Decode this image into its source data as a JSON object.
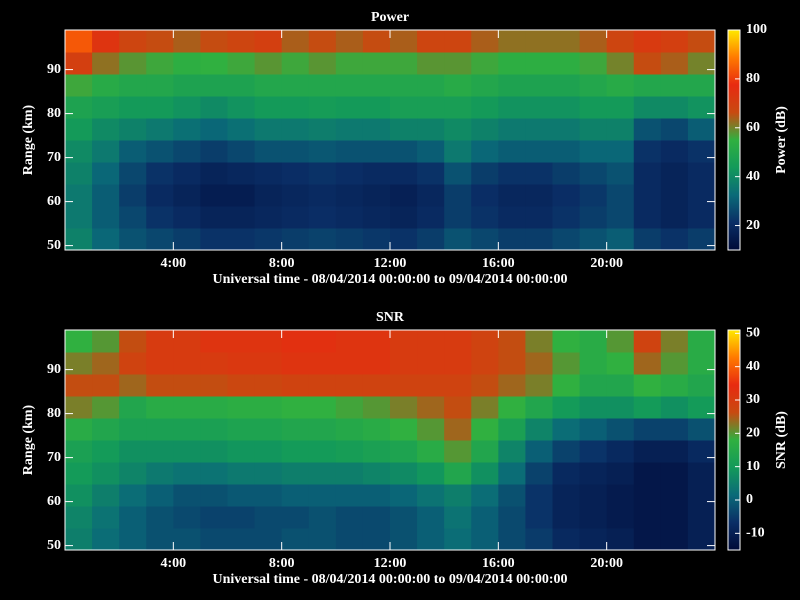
{
  "chart_data": [
    {
      "type": "heatmap",
      "title": "Power",
      "xlabel": "Universal time - 08/04/2014 00:00:00 to 09/04/2014 00:00:00",
      "ylabel": "Range (km)",
      "colorbar_label": "Power (dB)",
      "x_bins": [
        0,
        1,
        2,
        3,
        4,
        5,
        6,
        7,
        8,
        9,
        10,
        11,
        12,
        13,
        14,
        15,
        16,
        17,
        18,
        19,
        20,
        21,
        22,
        23,
        24
      ],
      "y_bins": [
        49,
        54,
        59,
        64,
        69,
        74,
        79,
        84,
        89,
        94,
        99
      ],
      "xlim": [
        0,
        24
      ],
      "ylim": [
        49,
        99
      ],
      "xticks": [
        {
          "value": 4,
          "label": "4:00"
        },
        {
          "value": 8,
          "label": "8:00"
        },
        {
          "value": 12,
          "label": "12:00"
        },
        {
          "value": 16,
          "label": "16:00"
        },
        {
          "value": 20,
          "label": "20:00"
        }
      ],
      "yticks": [
        50,
        60,
        70,
        80,
        90
      ],
      "zlim": [
        10,
        100
      ],
      "zticks": [
        20,
        40,
        60,
        80,
        100
      ],
      "colormap": [
        "#000a38",
        "#0a2e66",
        "#0a6a78",
        "#139a5a",
        "#30b040",
        "#c84a10",
        "#e82a10",
        "#ff7a00",
        "#ffe800"
      ],
      "z": [
        [
          38,
          32,
          28,
          26,
          24,
          22,
          22,
          23,
          24,
          25,
          24,
          23,
          22,
          24,
          28,
          26,
          24,
          24,
          26,
          28,
          30,
          24,
          22,
          24
        ],
        [
          36,
          30,
          26,
          22,
          20,
          18,
          18,
          19,
          20,
          21,
          20,
          19,
          18,
          20,
          24,
          22,
          20,
          20,
          22,
          24,
          26,
          20,
          18,
          20
        ],
        [
          36,
          30,
          24,
          20,
          18,
          16,
          16,
          18,
          19,
          20,
          19,
          18,
          17,
          19,
          24,
          21,
          19,
          19,
          21,
          23,
          26,
          20,
          18,
          20
        ],
        [
          38,
          32,
          26,
          22,
          20,
          18,
          19,
          20,
          21,
          22,
          21,
          20,
          20,
          22,
          28,
          24,
          22,
          22,
          24,
          26,
          28,
          20,
          18,
          20
        ],
        [
          40,
          36,
          30,
          28,
          26,
          24,
          26,
          28,
          28,
          29,
          28,
          28,
          28,
          30,
          36,
          32,
          30,
          30,
          30,
          32,
          32,
          22,
          20,
          22
        ],
        [
          44,
          40,
          38,
          36,
          34,
          32,
          34,
          36,
          36,
          37,
          36,
          36,
          38,
          38,
          40,
          38,
          36,
          36,
          36,
          38,
          38,
          28,
          26,
          30
        ],
        [
          48,
          46,
          44,
          44,
          42,
          40,
          42,
          44,
          44,
          45,
          44,
          44,
          46,
          46,
          46,
          44,
          42,
          42,
          42,
          44,
          44,
          40,
          40,
          42
        ],
        [
          56,
          52,
          50,
          50,
          48,
          48,
          48,
          50,
          50,
          50,
          50,
          50,
          50,
          50,
          52,
          50,
          48,
          48,
          48,
          50,
          52,
          50,
          50,
          50
        ],
        [
          70,
          62,
          58,
          56,
          54,
          55,
          56,
          58,
          56,
          58,
          56,
          56,
          56,
          58,
          58,
          56,
          54,
          54,
          54,
          56,
          60,
          66,
          64,
          60
        ],
        [
          84,
          74,
          68,
          66,
          64,
          66,
          68,
          70,
          64,
          66,
          64,
          66,
          64,
          68,
          68,
          64,
          62,
          62,
          62,
          64,
          68,
          72,
          70,
          66
        ]
      ]
    },
    {
      "type": "heatmap",
      "title": "SNR",
      "xlabel": "Universal time - 08/04/2014 00:00:00 to 09/04/2014 00:00:00",
      "ylabel": "Range (km)",
      "colorbar_label": "SNR (dB)",
      "x_bins": [
        0,
        1,
        2,
        3,
        4,
        5,
        6,
        7,
        8,
        9,
        10,
        11,
        12,
        13,
        14,
        15,
        16,
        17,
        18,
        19,
        20,
        21,
        22,
        23,
        24
      ],
      "y_bins": [
        49,
        54,
        59,
        64,
        69,
        74,
        79,
        84,
        89,
        94,
        99
      ],
      "xlim": [
        0,
        24
      ],
      "ylim": [
        49,
        99
      ],
      "xticks": [
        {
          "value": 4,
          "label": "4:00"
        },
        {
          "value": 8,
          "label": "8:00"
        },
        {
          "value": 12,
          "label": "12:00"
        },
        {
          "value": 16,
          "label": "16:00"
        },
        {
          "value": 20,
          "label": "20:00"
        }
      ],
      "yticks": [
        50,
        60,
        70,
        80,
        90
      ],
      "zlim": [
        -15,
        51
      ],
      "zticks": [
        -10,
        0,
        10,
        20,
        30,
        40,
        50
      ],
      "colormap": [
        "#000a38",
        "#0a2e66",
        "#0a6a78",
        "#139a5a",
        "#30b040",
        "#c84a10",
        "#e82a10",
        "#ff7a00",
        "#ffe800"
      ],
      "z": [
        [
          5,
          2,
          0,
          -2,
          -2,
          -3,
          -3,
          -3,
          -2,
          -2,
          -3,
          -3,
          -2,
          0,
          2,
          0,
          -3,
          -5,
          -8,
          -9,
          -10,
          -12,
          -12,
          -10
        ],
        [
          6,
          3,
          0,
          -2,
          -3,
          -4,
          -4,
          -3,
          -3,
          -2,
          -3,
          -3,
          -2,
          0,
          3,
          0,
          -3,
          -6,
          -9,
          -10,
          -11,
          -12,
          -12,
          -10
        ],
        [
          8,
          5,
          2,
          0,
          -2,
          -2,
          -1,
          -1,
          0,
          0,
          0,
          0,
          1,
          3,
          5,
          2,
          -2,
          -6,
          -9,
          -10,
          -11,
          -12,
          -12,
          -10
        ],
        [
          10,
          8,
          6,
          4,
          3,
          3,
          4,
          4,
          5,
          5,
          5,
          6,
          7,
          9,
          14,
          8,
          2,
          -4,
          -8,
          -9,
          -10,
          -12,
          -12,
          -10
        ],
        [
          12,
          10,
          8,
          8,
          8,
          8,
          9,
          9,
          10,
          10,
          11,
          12,
          13,
          16,
          20,
          14,
          6,
          0,
          -4,
          -6,
          -8,
          -10,
          -10,
          -8
        ],
        [
          16,
          14,
          12,
          12,
          12,
          12,
          13,
          13,
          14,
          14,
          15,
          16,
          18,
          20,
          24,
          18,
          12,
          6,
          2,
          0,
          -2,
          -4,
          -4,
          -2
        ],
        [
          22,
          20,
          14,
          16,
          16,
          16,
          17,
          17,
          18,
          18,
          19,
          20,
          22,
          24,
          26,
          22,
          18,
          14,
          10,
          8,
          8,
          10,
          8,
          10
        ],
        [
          26,
          26,
          24,
          26,
          26,
          26,
          27,
          27,
          28,
          28,
          28,
          28,
          28,
          28,
          28,
          26,
          24,
          22,
          18,
          14,
          14,
          18,
          16,
          14
        ],
        [
          22,
          24,
          28,
          30,
          30,
          30,
          31,
          31,
          32,
          32,
          32,
          32,
          30,
          30,
          30,
          28,
          26,
          24,
          20,
          16,
          18,
          24,
          20,
          16
        ],
        [
          18,
          20,
          26,
          30,
          30,
          32,
          32,
          32,
          33,
          33,
          32,
          32,
          30,
          30,
          30,
          28,
          26,
          22,
          18,
          16,
          20,
          28,
          22,
          16
        ]
      ]
    }
  ]
}
